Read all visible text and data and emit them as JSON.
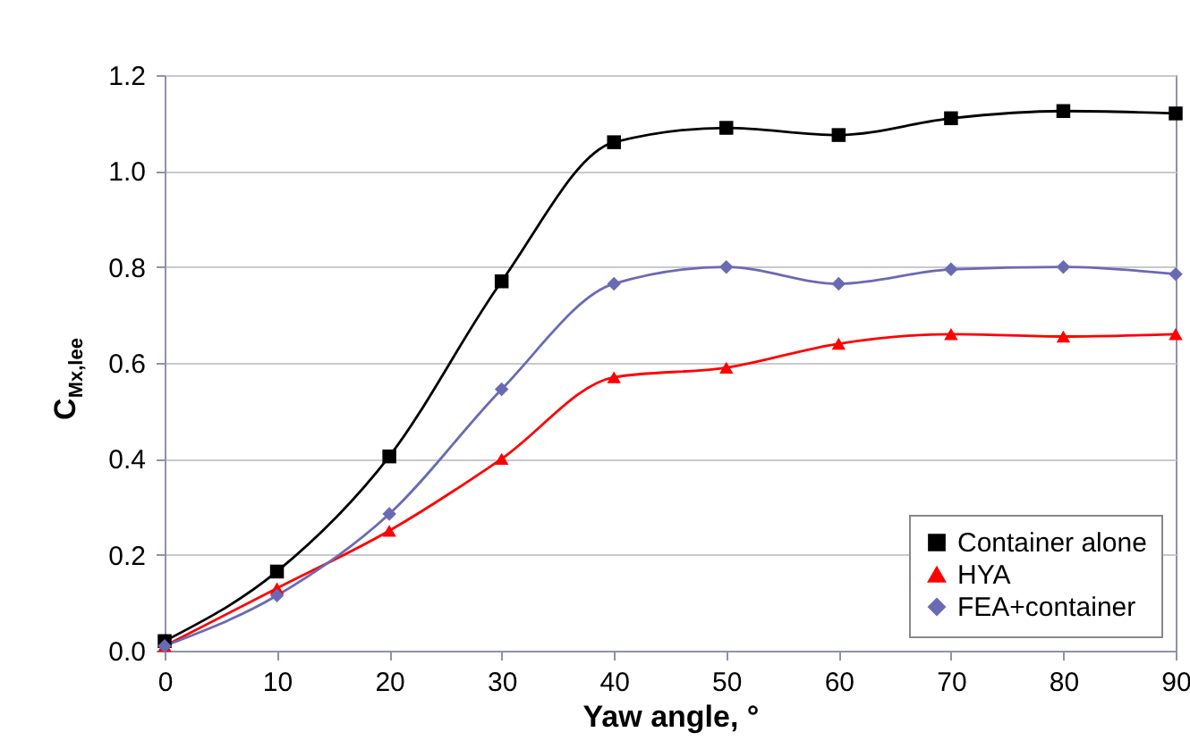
{
  "chart_data": {
    "type": "line",
    "xlabel": "Yaw angle, °",
    "ylabel": "C$_{Mx,lee}$",
    "x": [
      0,
      10,
      20,
      30,
      40,
      50,
      60,
      70,
      80,
      90
    ],
    "series": [
      {
        "name": "Container alone",
        "color": "#000000",
        "marker": "square",
        "values": [
          0.02,
          0.165,
          0.405,
          0.77,
          1.06,
          1.09,
          1.075,
          1.11,
          1.125,
          1.12
        ]
      },
      {
        "name": "HYA",
        "color": "#ff0000",
        "marker": "triangle",
        "values": [
          0.01,
          0.13,
          0.25,
          0.4,
          0.57,
          0.59,
          0.64,
          0.66,
          0.655,
          0.66
        ]
      },
      {
        "name": "FEA+container",
        "color": "#6a6ab4",
        "marker": "diamond",
        "values": [
          0.01,
          0.115,
          0.285,
          0.545,
          0.765,
          0.8,
          0.765,
          0.795,
          0.8,
          0.785
        ]
      }
    ],
    "xlim": [
      0,
      90
    ],
    "xticks": [
      0,
      10,
      20,
      30,
      40,
      50,
      60,
      70,
      80,
      90
    ],
    "ylim": [
      0,
      1.2
    ],
    "yticks": [
      {
        "value": 0,
        "label": "0.0"
      },
      0.2,
      0.4,
      0.6,
      0.8,
      {
        "value": 1,
        "label": "1.0"
      },
      1.2
    ],
    "grid": "y",
    "legend": "bottom right"
  }
}
